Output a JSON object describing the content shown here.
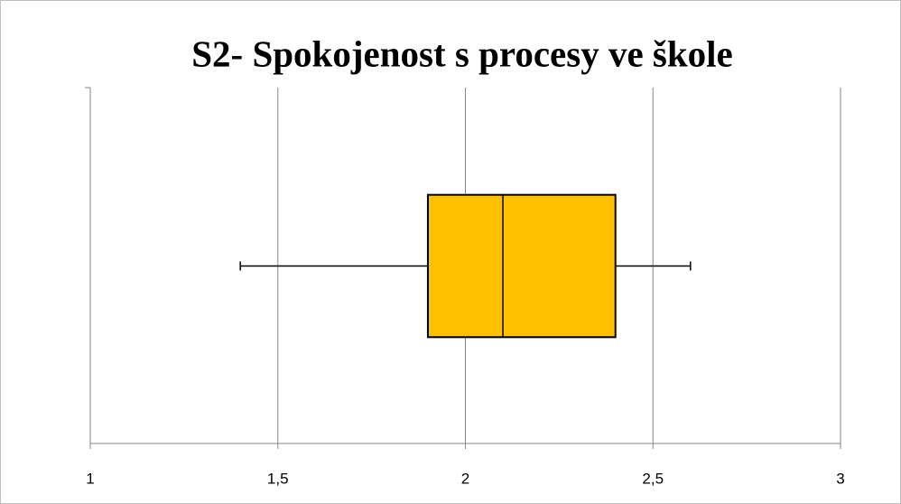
{
  "chart_data": {
    "type": "box",
    "title": "S2- Spokojenost s procesy ve škole",
    "boxes": [
      {
        "min": 1.4,
        "q1": 1.9,
        "median": 2.1,
        "q3": 2.4,
        "max": 2.6
      }
    ],
    "color": "#ffc000",
    "xlim": [
      1,
      3
    ],
    "xticks": [
      1,
      {
        "value": 1.5,
        "label": "1,5"
      },
      2,
      {
        "value": 2.5,
        "label": "2,5"
      },
      3
    ],
    "grid": true
  }
}
